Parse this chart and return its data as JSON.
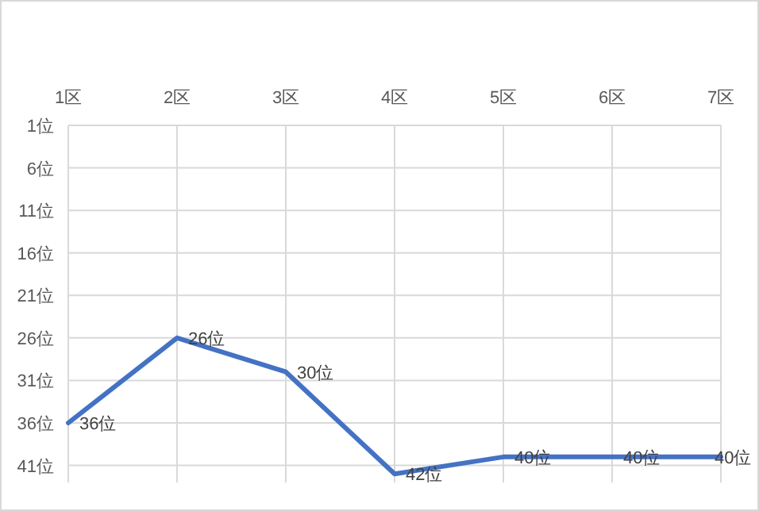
{
  "chart_data": {
    "type": "line",
    "categories": [
      "1区",
      "2区",
      "3区",
      "4区",
      "5区",
      "6区",
      "7区"
    ],
    "series": [
      {
        "color": "#4472c4",
        "values": [
          36,
          26,
          30,
          42,
          40,
          40,
          40
        ],
        "value_labels": [
          "36位",
          "26位",
          "30位",
          "42位",
          "40位",
          "40位",
          "40位"
        ]
      }
    ],
    "ylim": [
      43,
      1
    ],
    "yticks": [
      {
        "value": 1,
        "label": "1位"
      },
      {
        "value": 6,
        "label": "6位"
      },
      {
        "value": 11,
        "label": "11位"
      },
      {
        "value": 16,
        "label": "16位"
      },
      {
        "value": 21,
        "label": "21位"
      },
      {
        "value": 26,
        "label": "26位"
      },
      {
        "value": 31,
        "label": "31位"
      },
      {
        "value": 36,
        "label": "36位"
      },
      {
        "value": 41,
        "label": "41位"
      }
    ],
    "grid": true
  }
}
